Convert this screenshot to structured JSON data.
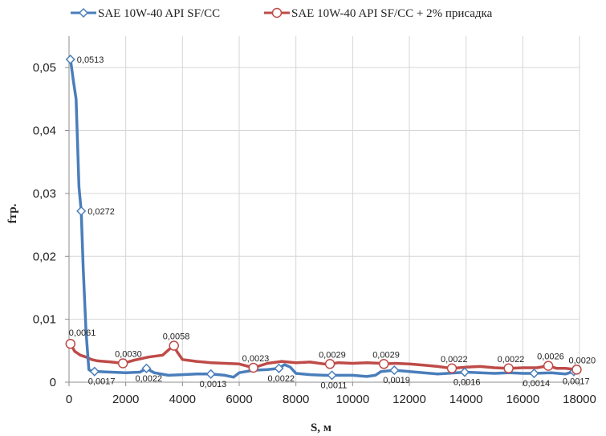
{
  "chart_data": {
    "type": "line",
    "title": "",
    "xlabel": "S, м",
    "ylabel": "fтр.",
    "xlim": [
      0,
      18000
    ],
    "ylim": [
      0,
      0.055
    ],
    "x_ticks": [
      "0",
      "2000",
      "4000",
      "6000",
      "8000",
      "10000",
      "12000",
      "14000",
      "16000",
      "18000"
    ],
    "y_ticks": [
      "0",
      "0,01",
      "0,02",
      "0,03",
      "0,04",
      "0,05"
    ],
    "grid": true,
    "legend_position": "top",
    "series": [
      {
        "name": "SAE 10W-40 API SF/CC",
        "color": "#4a7ebb",
        "marker": "diamond",
        "x": [
          50,
          150,
          250,
          350,
          430,
          500,
          600,
          700,
          800,
          1000,
          1500,
          2000,
          2500,
          2730,
          3000,
          3500,
          4000,
          4500,
          5000,
          5500,
          5800,
          6000,
          6500,
          7000,
          7400,
          7600,
          7800,
          8000,
          8500,
          9000,
          9270,
          10000,
          10500,
          10800,
          11000,
          11470,
          12000,
          13000,
          14000,
          15000,
          15500,
          16000,
          16400,
          17000,
          17500,
          17800,
          17900
        ],
        "y": [
          0.0513,
          0.048,
          0.045,
          0.031,
          0.0272,
          0.018,
          0.008,
          0.002,
          0.0017,
          0.0017,
          0.0016,
          0.0015,
          0.0016,
          0.0022,
          0.0015,
          0.0011,
          0.0012,
          0.0013,
          0.0013,
          0.0011,
          0.0008,
          0.0015,
          0.0019,
          0.002,
          0.0022,
          0.0028,
          0.0024,
          0.0014,
          0.0012,
          0.0011,
          0.0011,
          0.0011,
          0.0009,
          0.0011,
          0.0017,
          0.0019,
          0.0017,
          0.0013,
          0.0016,
          0.0014,
          0.0015,
          0.0014,
          0.0014,
          0.0015,
          0.0013,
          0.0017,
          0.0017
        ],
        "markers": [
          {
            "x": 50,
            "y": 0.0513,
            "label": "0,0513"
          },
          {
            "x": 430,
            "y": 0.0272,
            "label": "0,0272"
          },
          {
            "x": 900,
            "y": 0.0017,
            "label": "0,0017"
          },
          {
            "x": 2730,
            "y": 0.0022,
            "label": "0,0022"
          },
          {
            "x": 5000,
            "y": 0.0013,
            "label": "0,0013"
          },
          {
            "x": 7400,
            "y": 0.0022,
            "label": "0,0022"
          },
          {
            "x": 9270,
            "y": 0.0011,
            "label": "0,0011"
          },
          {
            "x": 11470,
            "y": 0.0019,
            "label": "0,0019"
          },
          {
            "x": 13950,
            "y": 0.0016,
            "label": "0,0016"
          },
          {
            "x": 16400,
            "y": 0.0014,
            "label": "0,0014"
          },
          {
            "x": 17800,
            "y": 0.0017,
            "label": "0,0017"
          }
        ]
      },
      {
        "name": "SAE 10W-40 API SF/CC + 2% присадка",
        "color": "#be4b48",
        "marker": "circle",
        "x": [
          50,
          200,
          400,
          600,
          800,
          1000,
          1500,
          1900,
          2300,
          2800,
          3300,
          3600,
          3700,
          3800,
          4000,
          4500,
          5000,
          5500,
          6000,
          6500,
          7000,
          7500,
          8000,
          8500,
          9000,
          9200,
          9500,
          10000,
          10500,
          11000,
          11100,
          11500,
          12000,
          12500,
          13000,
          13500,
          14000,
          14500,
          15000,
          15500,
          16000,
          16500,
          16900,
          17200,
          17500,
          17900
        ],
        "y": [
          0.0061,
          0.0049,
          0.0043,
          0.004,
          0.0036,
          0.0034,
          0.0032,
          0.003,
          0.0035,
          0.004,
          0.0043,
          0.0055,
          0.0058,
          0.0049,
          0.0036,
          0.0033,
          0.0031,
          0.003,
          0.0029,
          0.0023,
          0.003,
          0.0033,
          0.0031,
          0.0032,
          0.0029,
          0.0029,
          0.0031,
          0.003,
          0.0031,
          0.003,
          0.0029,
          0.003,
          0.0029,
          0.0027,
          0.0025,
          0.0022,
          0.0024,
          0.0025,
          0.0023,
          0.0022,
          0.0023,
          0.0023,
          0.0026,
          0.0022,
          0.0022,
          0.002
        ],
        "markers": [
          {
            "x": 50,
            "y": 0.0061,
            "label": "0,0061"
          },
          {
            "x": 1900,
            "y": 0.003,
            "label": "0,0030"
          },
          {
            "x": 3700,
            "y": 0.0058,
            "label": "0,0058"
          },
          {
            "x": 6500,
            "y": 0.0023,
            "label": "0,0023"
          },
          {
            "x": 9200,
            "y": 0.0029,
            "label": "0,0029"
          },
          {
            "x": 11100,
            "y": 0.0029,
            "label": "0,0029"
          },
          {
            "x": 13500,
            "y": 0.0022,
            "label": "0,0022"
          },
          {
            "x": 15500,
            "y": 0.0022,
            "label": "0,0022"
          },
          {
            "x": 16900,
            "y": 0.0026,
            "label": "0,0026"
          },
          {
            "x": 17900,
            "y": 0.002,
            "label": "0,0020"
          }
        ]
      }
    ]
  }
}
